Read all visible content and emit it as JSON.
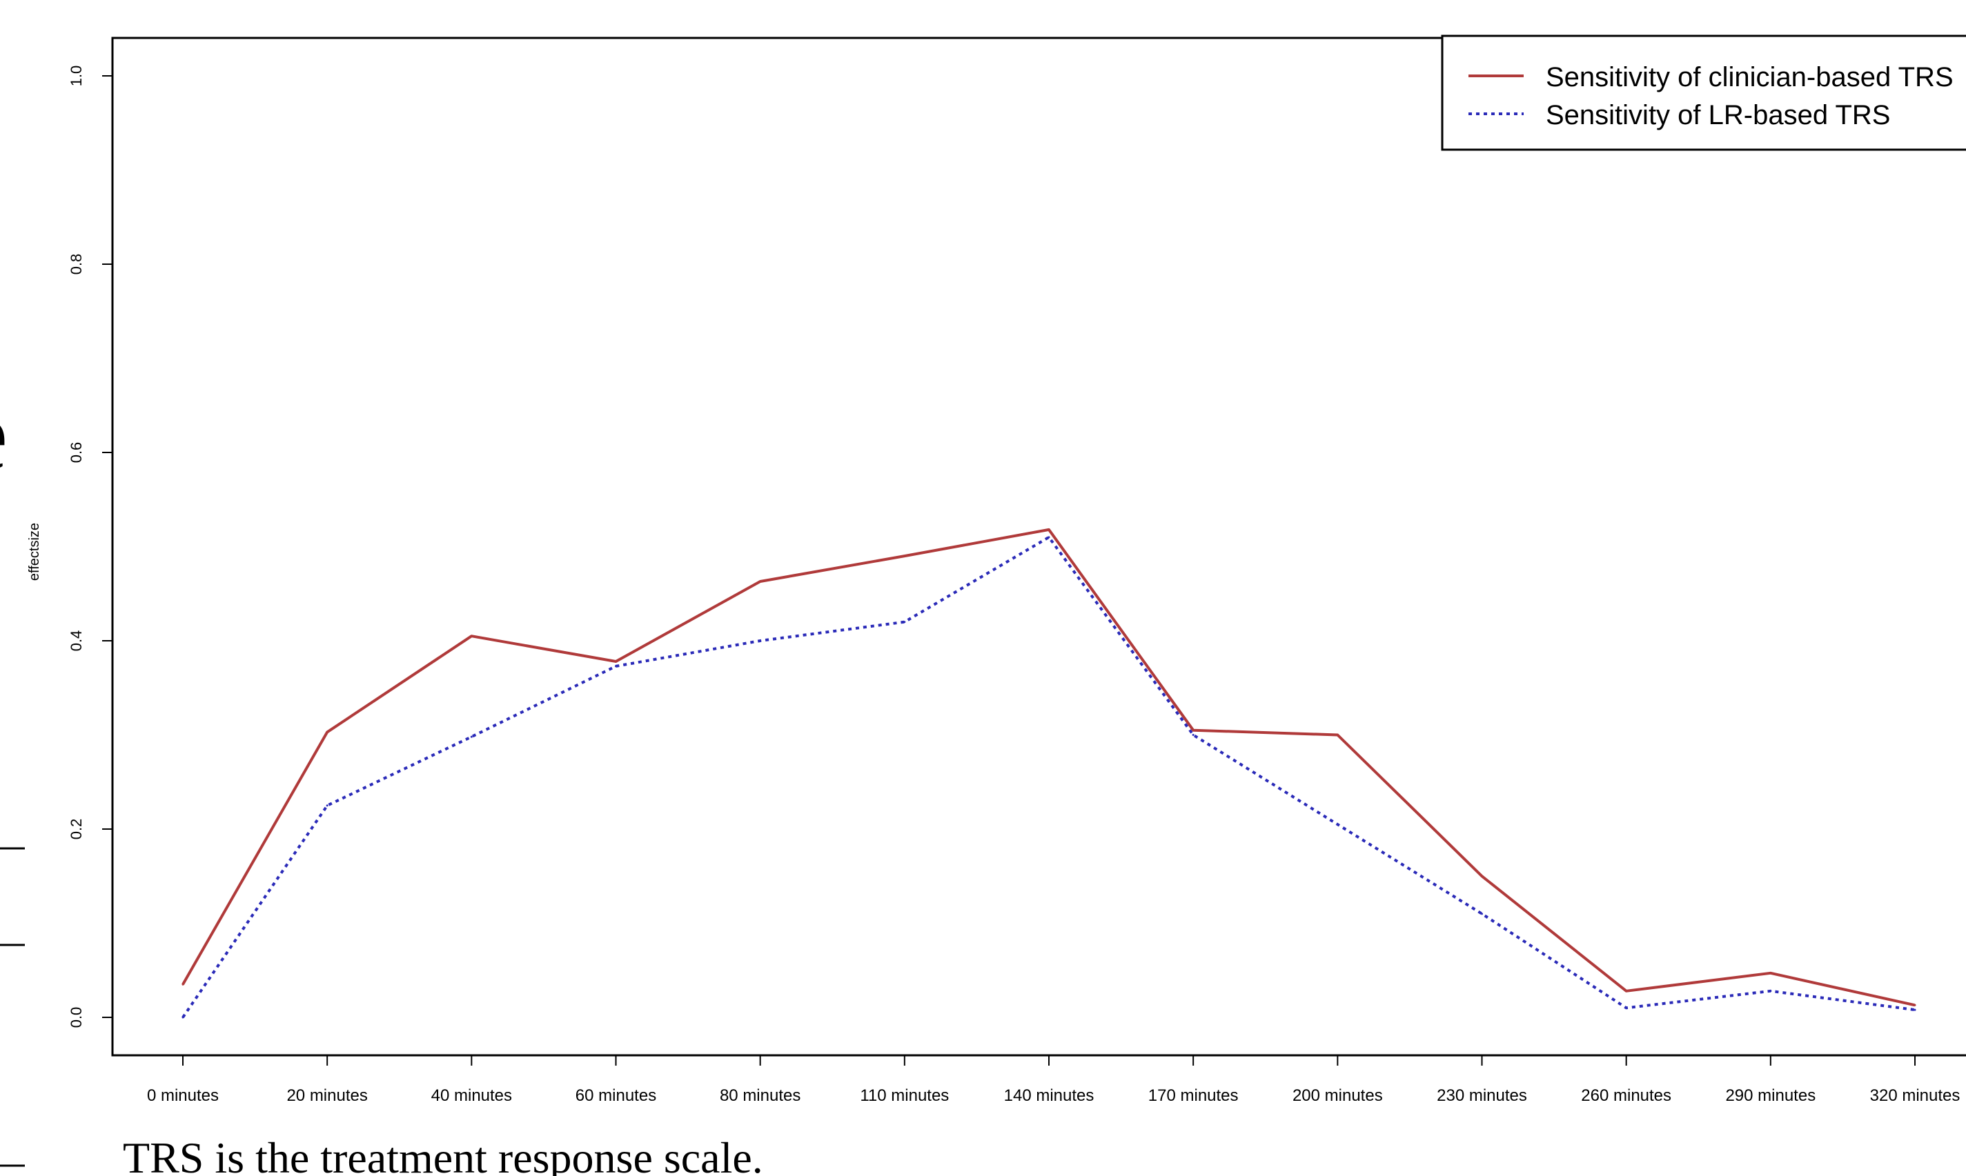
{
  "page": {
    "caption": "TRS is the treatment response scale.",
    "left_edge_fragments": [
      "e",
      "s"
    ]
  },
  "chart_data": {
    "type": "line",
    "xlabel": "",
    "ylabel": "effectsize",
    "ylim": [
      0,
      1
    ],
    "yticks": [
      "0.0",
      "0.2",
      "0.4",
      "0.6",
      "0.8",
      "1.0"
    ],
    "categories": [
      "0 minutes",
      "20 minutes",
      "40 minutes",
      "60 minutes",
      "80 minutes",
      "110 minutes",
      "140 minutes",
      "170 minutes",
      "200 minutes",
      "230 minutes",
      "260 minutes",
      "290 minutes",
      "320 minutes"
    ],
    "series": [
      {
        "name": "Sensitivity of clinician-based TRS",
        "color": "#b03a3a",
        "dash": "solid",
        "values": [
          0.035,
          0.303,
          0.405,
          0.378,
          0.463,
          0.49,
          0.518,
          0.305,
          0.3,
          0.15,
          0.028,
          0.047,
          0.013
        ]
      },
      {
        "name": "Sensitivity of LR-based TRS",
        "color": "#2a2ab8",
        "dash": "dotted",
        "values": [
          0.0,
          0.225,
          0.298,
          0.373,
          0.4,
          0.42,
          0.51,
          0.3,
          0.205,
          0.11,
          0.01,
          0.028,
          0.008
        ]
      }
    ],
    "legend_position": "top-right",
    "grid": false
  }
}
